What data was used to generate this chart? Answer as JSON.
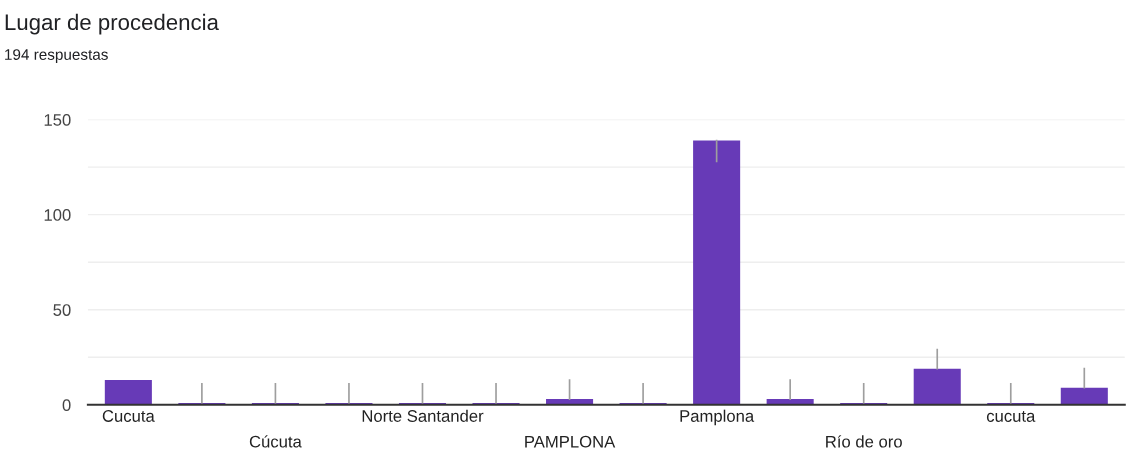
{
  "chart_data": {
    "type": "bar",
    "title": "Lugar de procedencia",
    "subtitle": "194 respuestas",
    "categories": [
      "Cucuta",
      null,
      "Cúcuta",
      null,
      "Norte Santander",
      null,
      "PAMPLONA",
      null,
      "Pamplona",
      null,
      "Río de oro",
      null,
      "cucuta",
      null
    ],
    "values": [
      13,
      1,
      1,
      1,
      1,
      1,
      3,
      1,
      139,
      3,
      1,
      19,
      1,
      9
    ],
    "errors": [
      null,
      [
        1,
        11
      ],
      [
        1,
        11
      ],
      [
        1,
        11
      ],
      [
        1,
        11
      ],
      [
        1,
        11
      ],
      [
        3,
        13
      ],
      [
        1,
        11
      ],
      [
        128,
        139
      ],
      [
        3,
        13
      ],
      [
        1,
        11
      ],
      [
        19,
        29
      ],
      [
        1,
        11
      ],
      [
        9,
        19
      ]
    ],
    "color": "#673ab7",
    "ylim": [
      0,
      150
    ],
    "yticks": [
      0,
      {
        "value": 25,
        "label": null
      },
      50,
      {
        "value": 75,
        "label": null
      },
      100,
      {
        "value": 125,
        "label": null
      },
      150
    ],
    "grid": "y",
    "legend": false
  }
}
